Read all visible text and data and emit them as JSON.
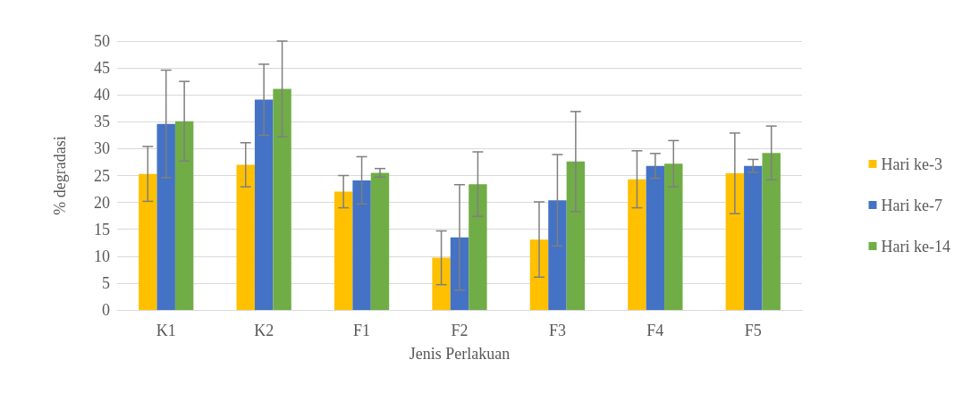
{
  "chart_data": {
    "type": "bar",
    "xlabel": "Jenis Perlakuan",
    "ylabel": "% degradasi",
    "categories": [
      "K1",
      "K2",
      "F1",
      "F2",
      "F3",
      "F4",
      "F5"
    ],
    "series": [
      {
        "name": "Hari ke-3",
        "color": "#ffc000",
        "values": [
          25.3,
          27,
          22,
          9.7,
          13.1,
          24.3,
          25.4
        ],
        "errors": [
          5.1,
          4.1,
          3,
          5,
          7,
          5.3,
          7.5
        ]
      },
      {
        "name": "Hari ke-7",
        "color": "#4472c4",
        "values": [
          34.6,
          39.1,
          24.1,
          13.5,
          20.4,
          26.8,
          26.8
        ],
        "errors": [
          10,
          6.6,
          4.4,
          9.8,
          8.5,
          2.3,
          1.2
        ]
      },
      {
        "name": "Hari ke-14",
        "color": "#70ad47",
        "values": [
          35.1,
          41.1,
          25.5,
          23.4,
          27.6,
          27.2,
          29.2
        ],
        "errors": [
          7.4,
          8.9,
          0.8,
          6,
          9.3,
          4.3,
          5
        ]
      }
    ],
    "ylim": [
      0,
      50
    ],
    "yticks": [
      0,
      5,
      10,
      15,
      20,
      25,
      30,
      35,
      40,
      45,
      50
    ],
    "grid": "y",
    "legend": "right"
  }
}
